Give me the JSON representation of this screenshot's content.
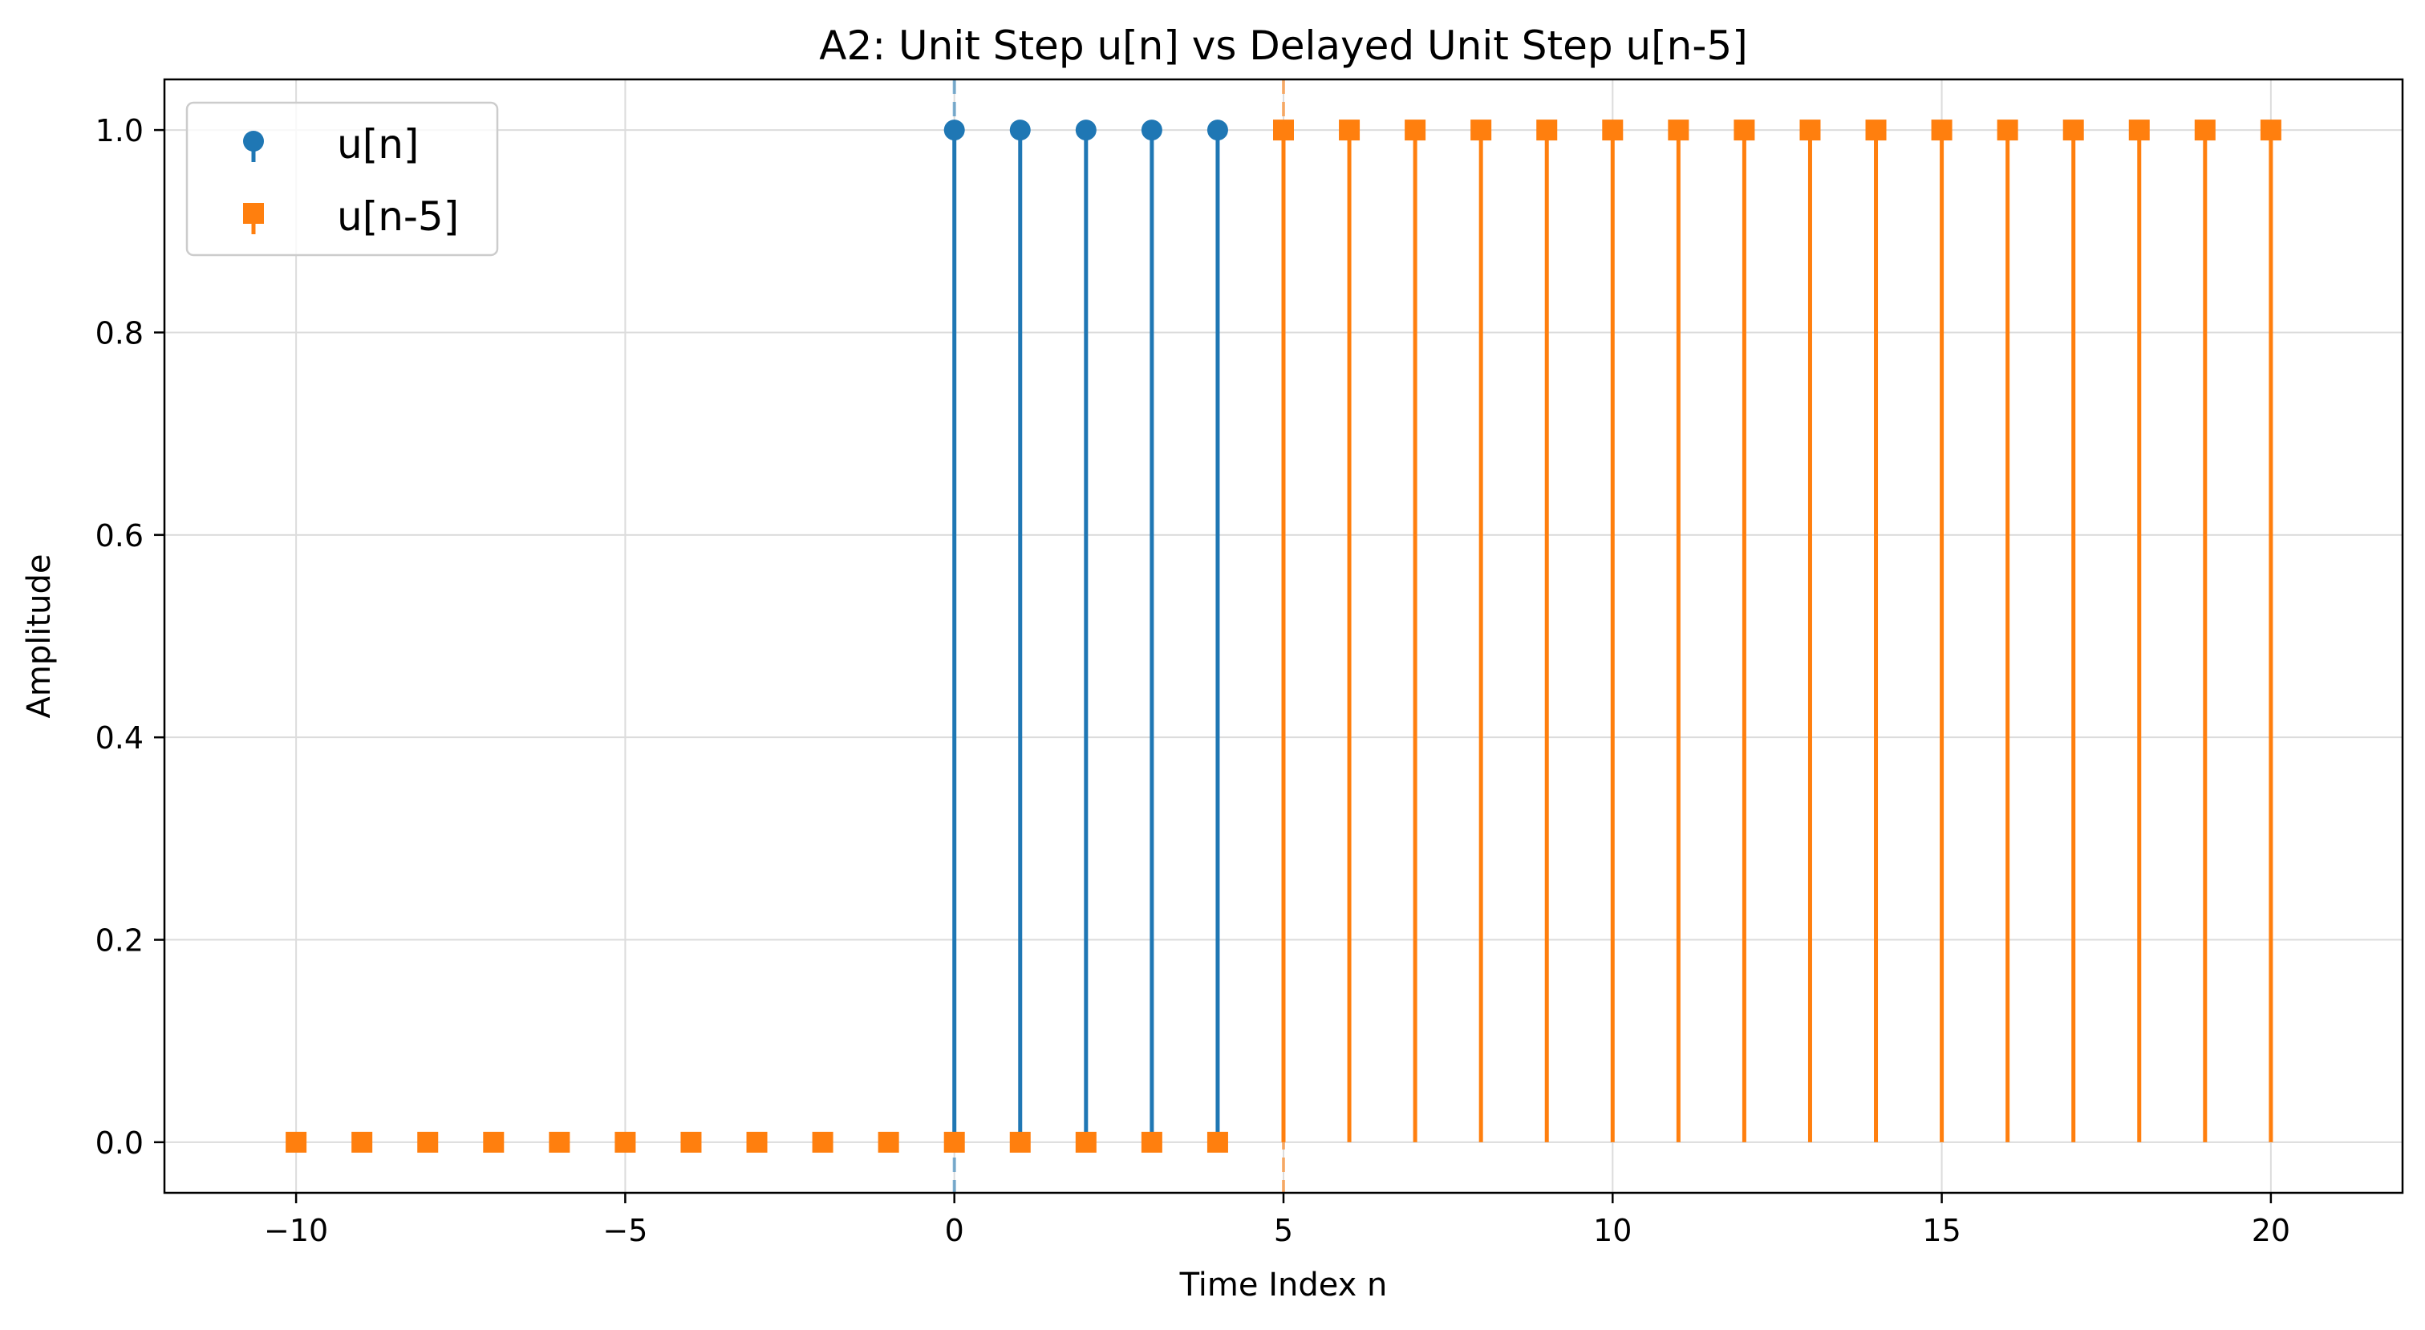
{
  "chart_data": {
    "type": "stem",
    "title": "A2: Unit Step u[n] vs Delayed Unit Step u[n-5]",
    "xlabel": "Time Index n",
    "ylabel": "Amplitude",
    "xlim": [
      -12,
      22
    ],
    "ylim": [
      -0.05,
      1.05
    ],
    "xticks": [
      -10,
      -5,
      0,
      5,
      10,
      15,
      20
    ],
    "xtick_labels": [
      "−10",
      "−5",
      "0",
      "5",
      "10",
      "15",
      "20"
    ],
    "yticks": [
      0.0,
      0.2,
      0.4,
      0.6,
      0.8,
      1.0
    ],
    "ytick_labels": [
      "0.0",
      "0.2",
      "0.4",
      "0.6",
      "0.8",
      "1.0"
    ],
    "grid": true,
    "legend_position": "top-left",
    "vlines": [
      {
        "x": 0,
        "color": "#1f77b4",
        "style": "dashed"
      },
      {
        "x": 5,
        "color": "#ff7f0e",
        "style": "dashed"
      }
    ],
    "series": [
      {
        "name": "u[n]",
        "marker": "circle",
        "color": "#1f77b4",
        "x": [
          0,
          1,
          2,
          3,
          4
        ],
        "values": [
          1,
          1,
          1,
          1,
          1
        ]
      },
      {
        "name": "u[n-5]",
        "marker": "square",
        "color": "#ff7f0e",
        "x": [
          -10,
          -9,
          -8,
          -7,
          -6,
          -5,
          -4,
          -3,
          -2,
          -1,
          0,
          1,
          2,
          3,
          4,
          5,
          6,
          7,
          8,
          9,
          10,
          11,
          12,
          13,
          14,
          15,
          16,
          17,
          18,
          19,
          20
        ],
        "values": [
          0,
          0,
          0,
          0,
          0,
          0,
          0,
          0,
          0,
          0,
          0,
          0,
          0,
          0,
          0,
          1,
          1,
          1,
          1,
          1,
          1,
          1,
          1,
          1,
          1,
          1,
          1,
          1,
          1,
          1,
          1
        ]
      }
    ]
  }
}
